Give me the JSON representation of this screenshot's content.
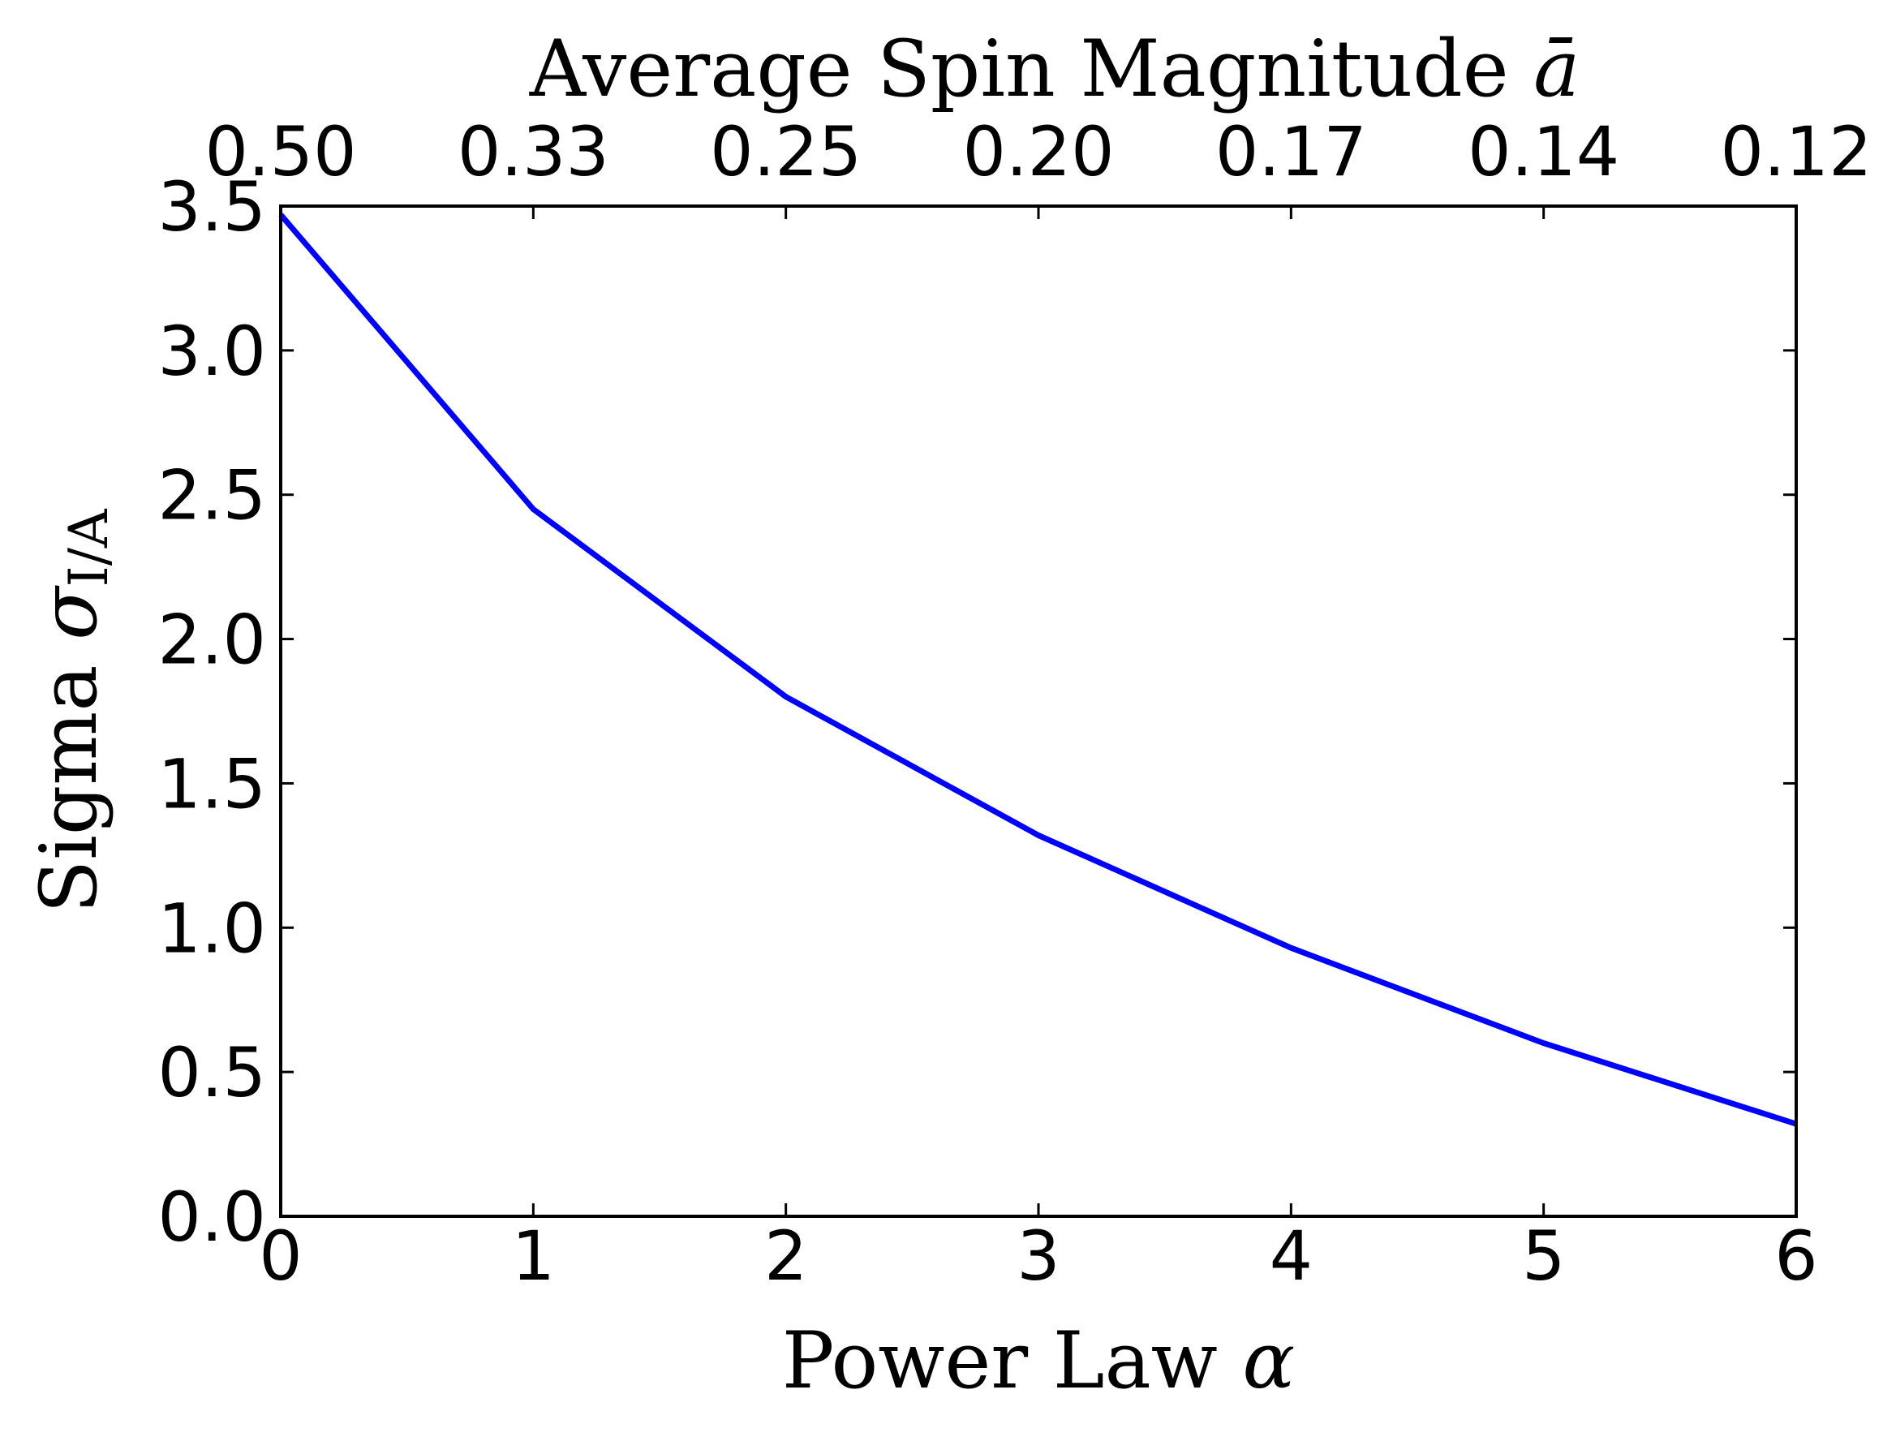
{
  "chart_data": {
    "type": "line",
    "xlabel": "Power Law",
    "xlabel_symbol": "α",
    "ylabel": "Sigma",
    "ylabel_symbol": "σ",
    "ylabel_subscript": "I/A",
    "top_xlabel": "Average Spin Magnitude",
    "top_xlabel_symbol": "ā",
    "xlim": [
      0,
      6
    ],
    "ylim": [
      0,
      3.5
    ],
    "x_ticks": [
      0,
      1,
      2,
      3,
      4,
      5,
      6
    ],
    "x_tick_labels": [
      "0",
      "1",
      "2",
      "3",
      "4",
      "5",
      "6"
    ],
    "y_ticks": [
      0,
      0.5,
      1.0,
      1.5,
      2.0,
      2.5,
      3.0,
      3.5
    ],
    "y_tick_labels": [
      "0.0",
      "0.5",
      "1.0",
      "1.5",
      "2.0",
      "2.5",
      "3.0",
      "3.5"
    ],
    "top_ticks": [
      0,
      1,
      2,
      3,
      4,
      5,
      6
    ],
    "top_tick_labels": [
      "0.50",
      "0.33",
      "0.25",
      "0.20",
      "0.17",
      "0.14",
      "0.12"
    ],
    "grid": false,
    "series": [
      {
        "name": "sigma",
        "color": "#0000ff",
        "x": [
          0,
          1,
          2,
          3,
          4,
          5,
          6
        ],
        "y": [
          3.47,
          2.45,
          1.8,
          1.32,
          0.93,
          0.6,
          0.32
        ]
      }
    ]
  }
}
